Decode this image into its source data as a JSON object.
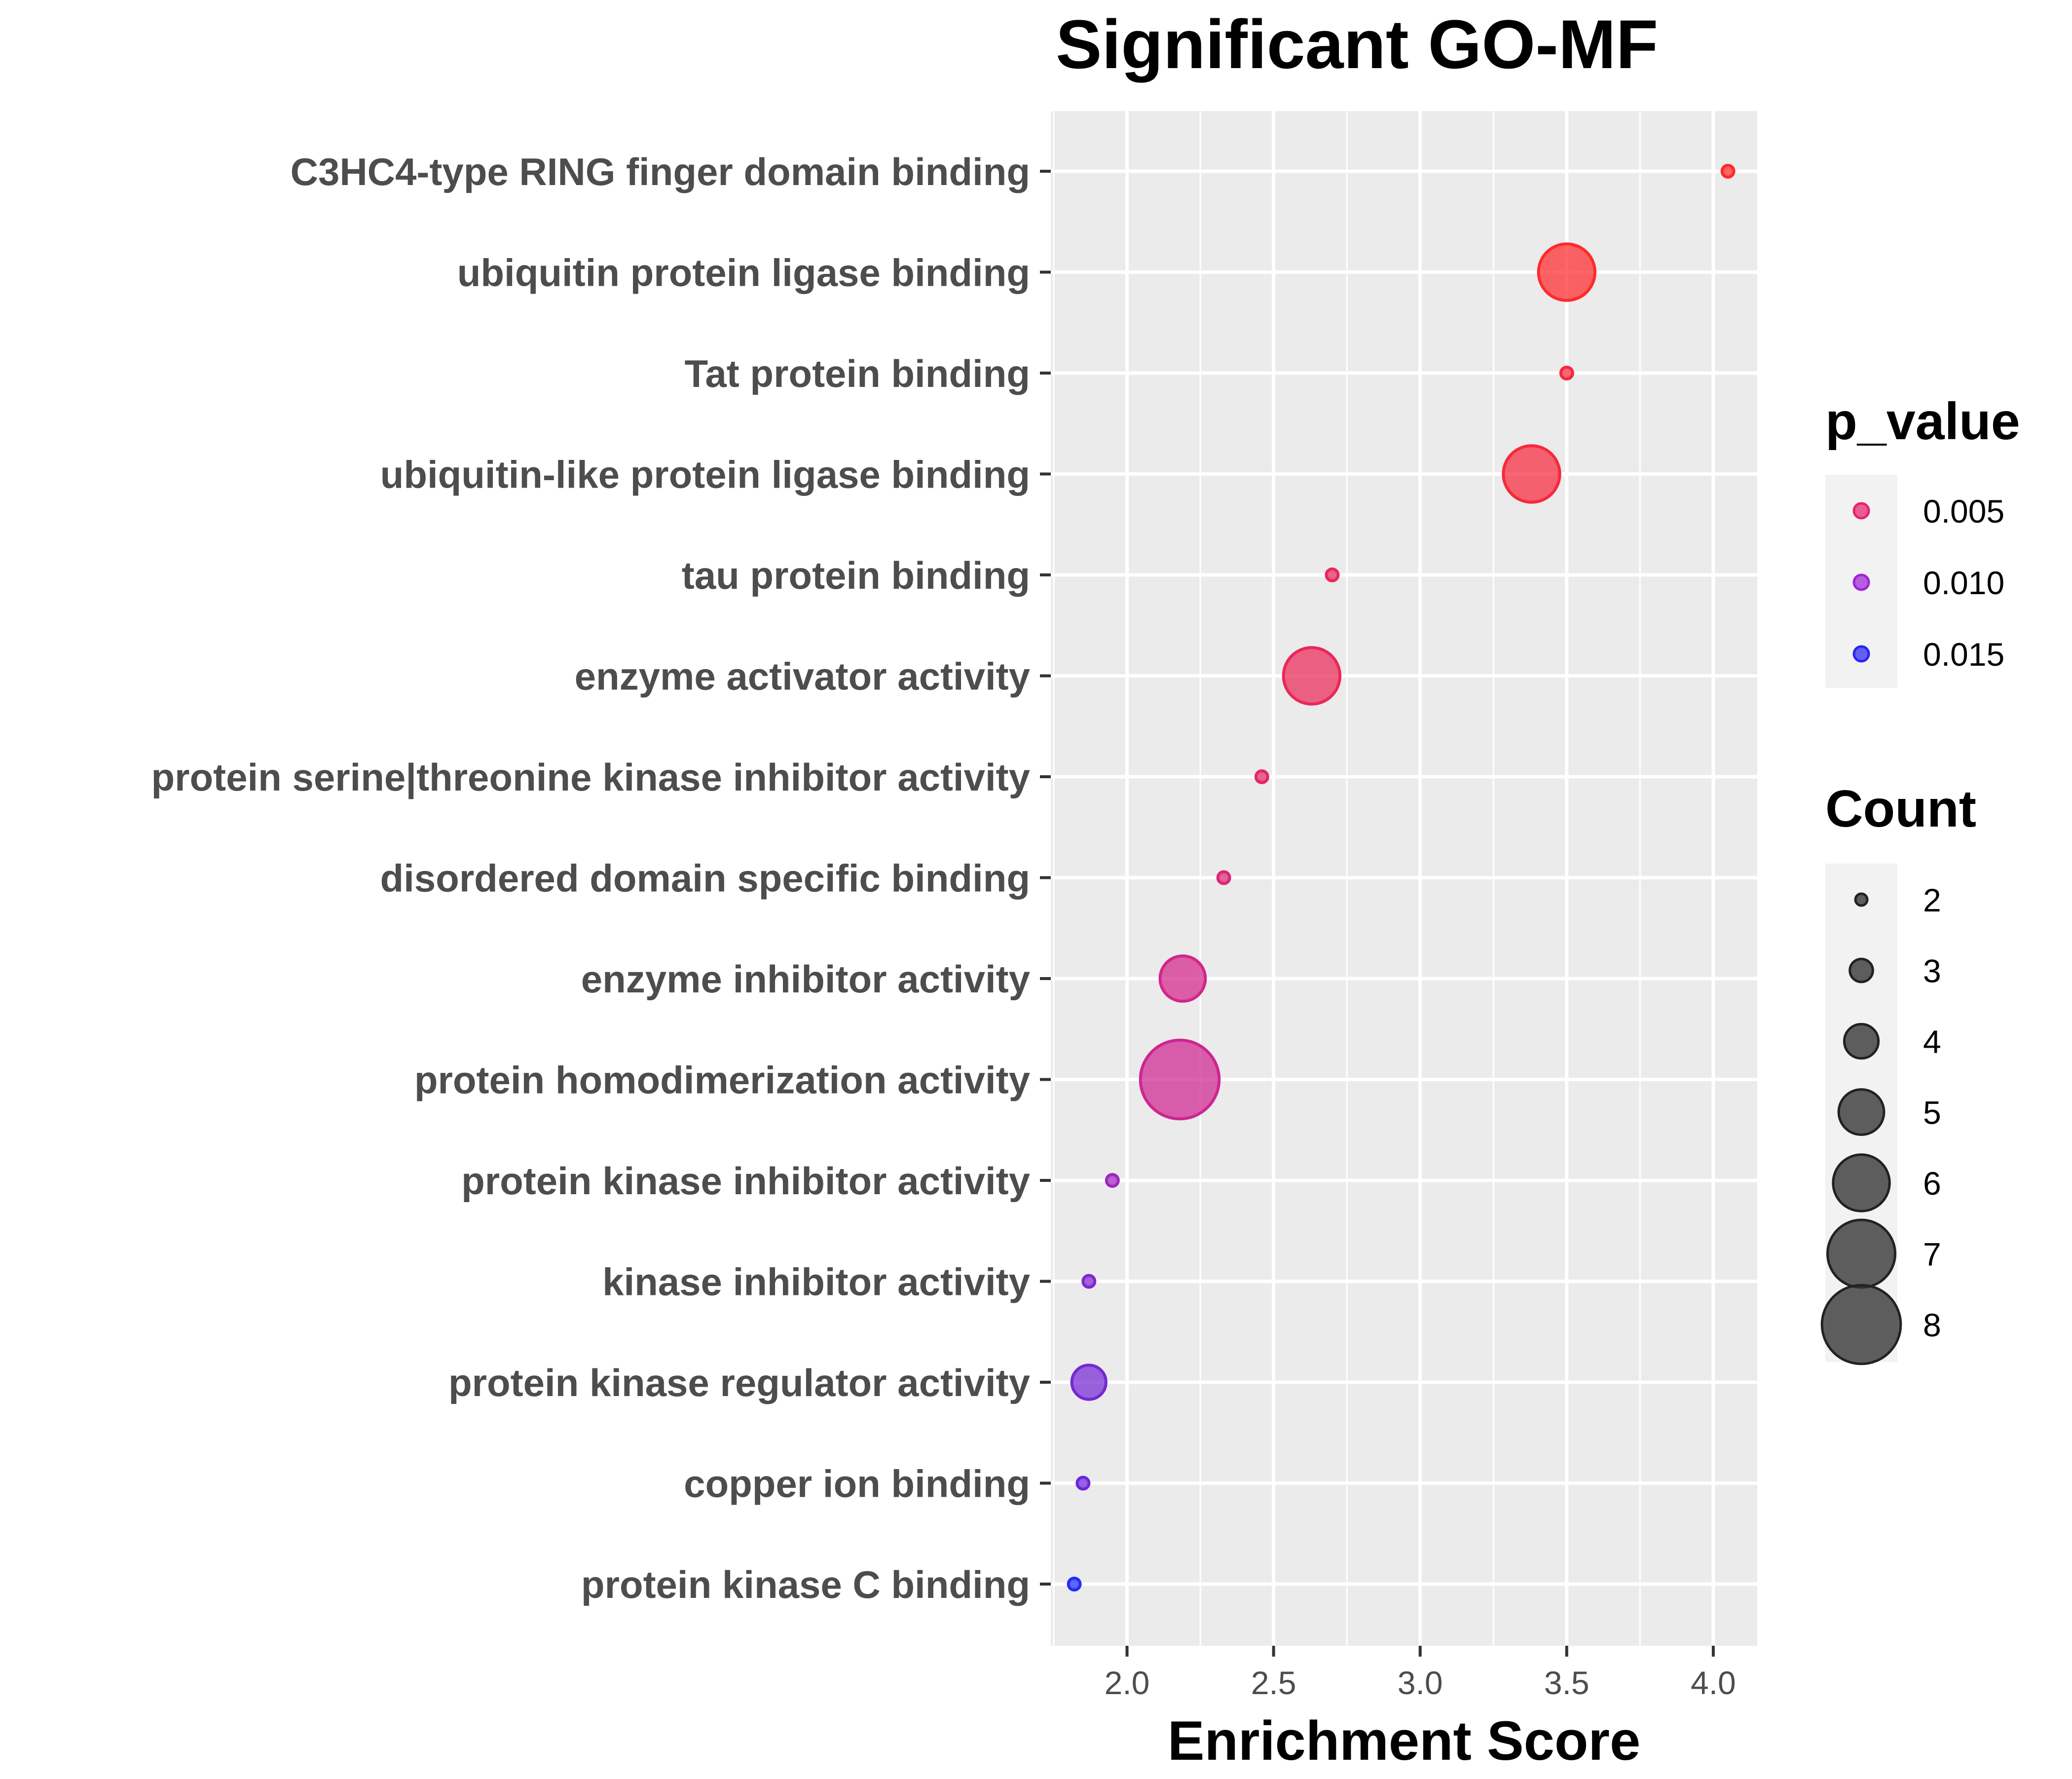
{
  "chart_data": {
    "type": "scatter",
    "title": "Significant GO-MF",
    "xlabel": "Enrichment Score",
    "ylabel": "",
    "xlim": [
      1.74,
      4.15
    ],
    "xticks": [
      2.0,
      2.5,
      3.0,
      3.5,
      4.0
    ],
    "xtick_labels": [
      "2.0",
      "2.5",
      "3.0",
      "3.5",
      "4.0"
    ],
    "categories": [
      "C3HC4-type RING finger domain binding",
      "ubiquitin protein ligase binding",
      "Tat protein binding",
      "ubiquitin-like protein ligase binding",
      "tau protein binding",
      "enzyme activator activity",
      "protein serine|threonine kinase inhibitor activity",
      "disordered domain specific binding",
      "enzyme inhibitor activity",
      "protein homodimerization activity",
      "protein kinase inhibitor activity",
      "kinase inhibitor activity",
      "protein kinase regulator activity",
      "copper ion binding",
      "protein kinase C binding"
    ],
    "points": [
      {
        "term": "C3HC4-type RING finger domain binding",
        "enrichment": 4.05,
        "count": 2,
        "p_value": 0.0012
      },
      {
        "term": "ubiquitin protein ligase binding",
        "enrichment": 3.5,
        "count": 6,
        "p_value": 0.0013
      },
      {
        "term": "Tat protein binding",
        "enrichment": 3.5,
        "count": 2,
        "p_value": 0.0025
      },
      {
        "term": "ubiquitin-like protein ligase binding",
        "enrichment": 3.38,
        "count": 6,
        "p_value": 0.0022
      },
      {
        "term": "tau protein binding",
        "enrichment": 2.7,
        "count": 2,
        "p_value": 0.004
      },
      {
        "term": "enzyme activator activity",
        "enrichment": 2.63,
        "count": 6,
        "p_value": 0.0038
      },
      {
        "term": "protein serine|threonine kinase inhibitor activity",
        "enrichment": 2.46,
        "count": 2,
        "p_value": 0.0048
      },
      {
        "term": "disordered domain specific binding",
        "enrichment": 2.33,
        "count": 2,
        "p_value": 0.0055
      },
      {
        "term": "enzyme inhibitor activity",
        "enrichment": 2.19,
        "count": 5,
        "p_value": 0.0068
      },
      {
        "term": "protein homodimerization activity",
        "enrichment": 2.18,
        "count": 8,
        "p_value": 0.0072
      },
      {
        "term": "protein kinase inhibitor activity",
        "enrichment": 1.95,
        "count": 2,
        "p_value": 0.0105
      },
      {
        "term": "kinase inhibitor activity",
        "enrichment": 1.87,
        "count": 2,
        "p_value": 0.012
      },
      {
        "term": "protein kinase regulator activity",
        "enrichment": 1.87,
        "count": 4,
        "p_value": 0.0125
      },
      {
        "term": "copper ion binding",
        "enrichment": 1.85,
        "count": 2,
        "p_value": 0.013
      },
      {
        "term": "protein kinase C binding",
        "enrichment": 1.82,
        "count": 2,
        "p_value": 0.0165
      }
    ],
    "color_legend": {
      "title": "p_value",
      "labels": [
        "0.005",
        "0.010",
        "0.015"
      ],
      "values": [
        0.005,
        0.01,
        0.015
      ],
      "colors": [
        "#e8226e",
        "#a024d6",
        "#2b24f5"
      ]
    },
    "size_legend": {
      "title": "Count",
      "labels": [
        "2",
        "3",
        "4",
        "5",
        "6",
        "7",
        "8"
      ],
      "values": [
        2,
        3,
        4,
        5,
        6,
        7,
        8
      ],
      "color": "#333333"
    },
    "color_scale": {
      "low_color": "#ff2a2a",
      "mid_color": "#c024b0",
      "high_color": "#1c2cff",
      "p_min": 0.0012,
      "p_max": 0.0168
    },
    "panel_background": "#ebebeb",
    "grid_color": "#ffffff",
    "grid": true,
    "legend_position": "right"
  }
}
